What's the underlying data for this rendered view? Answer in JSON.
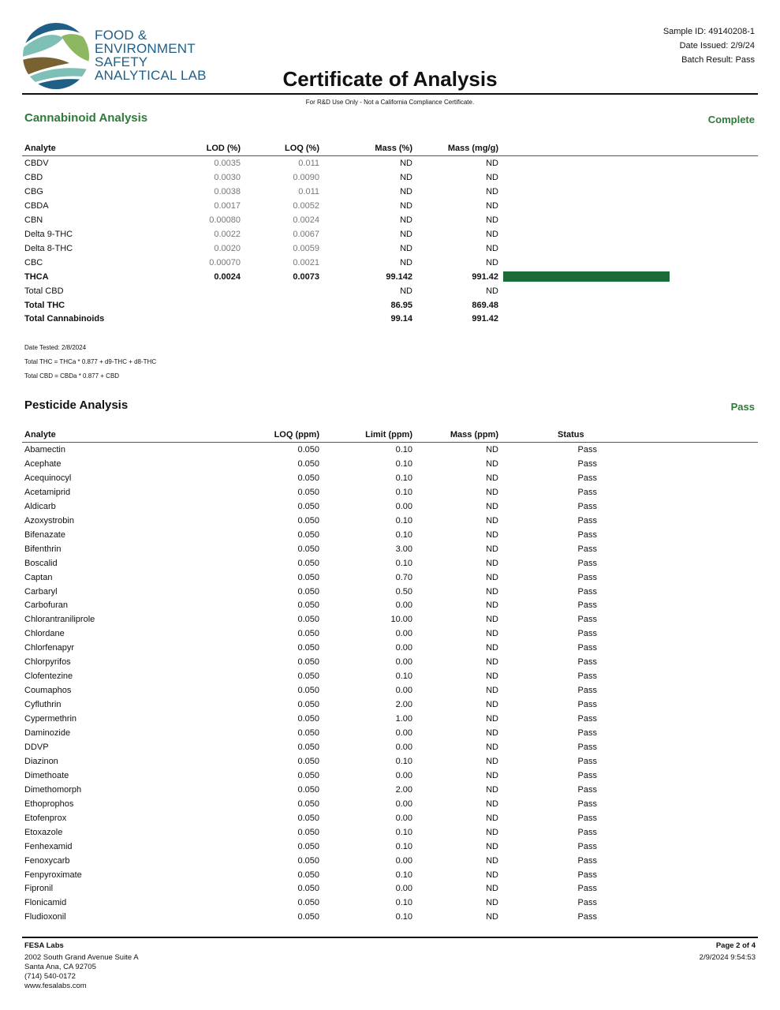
{
  "header": {
    "logo_text": [
      "FOOD &",
      "ENVIRONMENT",
      "SAFETY",
      "ANALYTICAL LAB"
    ],
    "sample_id": "Sample ID: 49140208-1",
    "date_issued": "Date Issued: 2/9/24",
    "batch_result": "Batch Result: Pass",
    "title": "Certificate of Analysis",
    "note": "For R&D Use Only - Not a California Compliance Certificate."
  },
  "colors": {
    "brand_blue": "#1f5f86",
    "status_green": "#2d7a3a",
    "bar_green": "#1e6b3a"
  },
  "cannabinoid": {
    "title": "Cannabinoid Analysis",
    "status": "Complete",
    "columns": [
      "Analyte",
      "LOD (%)",
      "LOQ (%)",
      "Mass (%)",
      "Mass (mg/g)"
    ],
    "rows": [
      {
        "analyte": "CBDV",
        "lod": "0.0035",
        "loq": "0.011",
        "mass_pct": "ND",
        "mass_mg": "ND"
      },
      {
        "analyte": "CBD",
        "lod": "0.0030",
        "loq": "0.0090",
        "mass_pct": "ND",
        "mass_mg": "ND"
      },
      {
        "analyte": "CBG",
        "lod": "0.0038",
        "loq": "0.011",
        "mass_pct": "ND",
        "mass_mg": "ND"
      },
      {
        "analyte": "CBDA",
        "lod": "0.0017",
        "loq": "0.0052",
        "mass_pct": "ND",
        "mass_mg": "ND"
      },
      {
        "analyte": "CBN",
        "lod": "0.00080",
        "loq": "0.0024",
        "mass_pct": "ND",
        "mass_mg": "ND"
      },
      {
        "analyte": "Delta 9-THC",
        "lod": "0.0022",
        "loq": "0.0067",
        "mass_pct": "ND",
        "mass_mg": "ND"
      },
      {
        "analyte": "Delta 8-THC",
        "lod": "0.0020",
        "loq": "0.0059",
        "mass_pct": "ND",
        "mass_mg": "ND"
      },
      {
        "analyte": "CBC",
        "lod": "0.00070",
        "loq": "0.0021",
        "mass_pct": "ND",
        "mass_mg": "ND"
      },
      {
        "analyte": "THCA",
        "lod": "0.0024",
        "loq": "0.0073",
        "mass_pct": "99.142",
        "mass_mg": "991.42",
        "bold": true,
        "bar_mg_g": 991.42
      },
      {
        "analyte": "Total CBD",
        "lod": "",
        "loq": "",
        "mass_pct": "ND",
        "mass_mg": "ND"
      },
      {
        "analyte": "Total THC",
        "lod": "",
        "loq": "",
        "mass_pct": "86.95",
        "mass_mg": "869.48",
        "bold": true
      },
      {
        "analyte": "Total Cannabinoids",
        "lod": "",
        "loq": "",
        "mass_pct": "99.14",
        "mass_mg": "991.42",
        "bold": true
      }
    ],
    "notes": [
      "Date Tested: 2/8/2024",
      "Total THC = THCa * 0.877 + d9-THC + d8-THC",
      "Total CBD = CBDa * 0.877 + CBD"
    ]
  },
  "pesticide": {
    "title": "Pesticide Analysis",
    "status": "Pass",
    "columns": [
      "Analyte",
      "LOQ (ppm)",
      "Limit (ppm)",
      "Mass (ppm)",
      "Status"
    ],
    "rows": [
      [
        "Abamectin",
        "0.050",
        "0.10",
        "ND",
        "Pass"
      ],
      [
        "Acephate",
        "0.050",
        "0.10",
        "ND",
        "Pass"
      ],
      [
        "Acequinocyl",
        "0.050",
        "0.10",
        "ND",
        "Pass"
      ],
      [
        "Acetamiprid",
        "0.050",
        "0.10",
        "ND",
        "Pass"
      ],
      [
        "Aldicarb",
        "0.050",
        "0.00",
        "ND",
        "Pass"
      ],
      [
        "Azoxystrobin",
        "0.050",
        "0.10",
        "ND",
        "Pass"
      ],
      [
        "Bifenazate",
        "0.050",
        "0.10",
        "ND",
        "Pass"
      ],
      [
        "Bifenthrin",
        "0.050",
        "3.00",
        "ND",
        "Pass"
      ],
      [
        "Boscalid",
        "0.050",
        "0.10",
        "ND",
        "Pass"
      ],
      [
        "Captan",
        "0.050",
        "0.70",
        "ND",
        "Pass"
      ],
      [
        "Carbaryl",
        "0.050",
        "0.50",
        "ND",
        "Pass"
      ],
      [
        "Carbofuran",
        "0.050",
        "0.00",
        "ND",
        "Pass"
      ],
      [
        "Chlorantraniliprole",
        "0.050",
        "10.00",
        "ND",
        "Pass"
      ],
      [
        "Chlordane",
        "0.050",
        "0.00",
        "ND",
        "Pass"
      ],
      [
        "Chlorfenapyr",
        "0.050",
        "0.00",
        "ND",
        "Pass"
      ],
      [
        "Chlorpyrifos",
        "0.050",
        "0.00",
        "ND",
        "Pass"
      ],
      [
        "Clofentezine",
        "0.050",
        "0.10",
        "ND",
        "Pass"
      ],
      [
        "Coumaphos",
        "0.050",
        "0.00",
        "ND",
        "Pass"
      ],
      [
        "Cyfluthrin",
        "0.050",
        "2.00",
        "ND",
        "Pass"
      ],
      [
        "Cypermethrin",
        "0.050",
        "1.00",
        "ND",
        "Pass"
      ],
      [
        "Daminozide",
        "0.050",
        "0.00",
        "ND",
        "Pass"
      ],
      [
        "DDVP",
        "0.050",
        "0.00",
        "ND",
        "Pass"
      ],
      [
        "Diazinon",
        "0.050",
        "0.10",
        "ND",
        "Pass"
      ],
      [
        "Dimethoate",
        "0.050",
        "0.00",
        "ND",
        "Pass"
      ],
      [
        "Dimethomorph",
        "0.050",
        "2.00",
        "ND",
        "Pass"
      ],
      [
        "Ethoprophos",
        "0.050",
        "0.00",
        "ND",
        "Pass"
      ],
      [
        "Etofenprox",
        "0.050",
        "0.00",
        "ND",
        "Pass"
      ],
      [
        "Etoxazole",
        "0.050",
        "0.10",
        "ND",
        "Pass"
      ],
      [
        "Fenhexamid",
        "0.050",
        "0.10",
        "ND",
        "Pass"
      ],
      [
        "Fenoxycarb",
        "0.050",
        "0.00",
        "ND",
        "Pass"
      ],
      [
        "Fenpyroximate",
        "0.050",
        "0.10",
        "ND",
        "Pass"
      ],
      [
        "Fipronil",
        "0.050",
        "0.00",
        "ND",
        "Pass"
      ],
      [
        "Flonicamid",
        "0.050",
        "0.10",
        "ND",
        "Pass"
      ],
      [
        "Fludioxonil",
        "0.050",
        "0.10",
        "ND",
        "Pass"
      ]
    ]
  },
  "footer": {
    "company": "FESA Labs",
    "address": [
      "2002 South Grand Avenue Suite A",
      "Santa Ana, CA 92705",
      "(714) 540-0172",
      "www.fesalabs.com"
    ],
    "page": "Page 2 of 4",
    "timestamp": "2/9/2024 9:54:53"
  }
}
